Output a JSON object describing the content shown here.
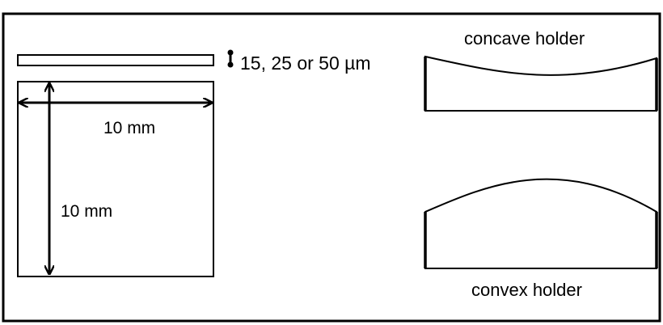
{
  "labels": {
    "thickness": "15, 25 or 50 µm",
    "width": "10 mm",
    "height": "10 mm",
    "concave": "concave holder",
    "convex": "convex holder"
  },
  "colors": {
    "stroke": "#000000",
    "background": "#ffffff"
  }
}
